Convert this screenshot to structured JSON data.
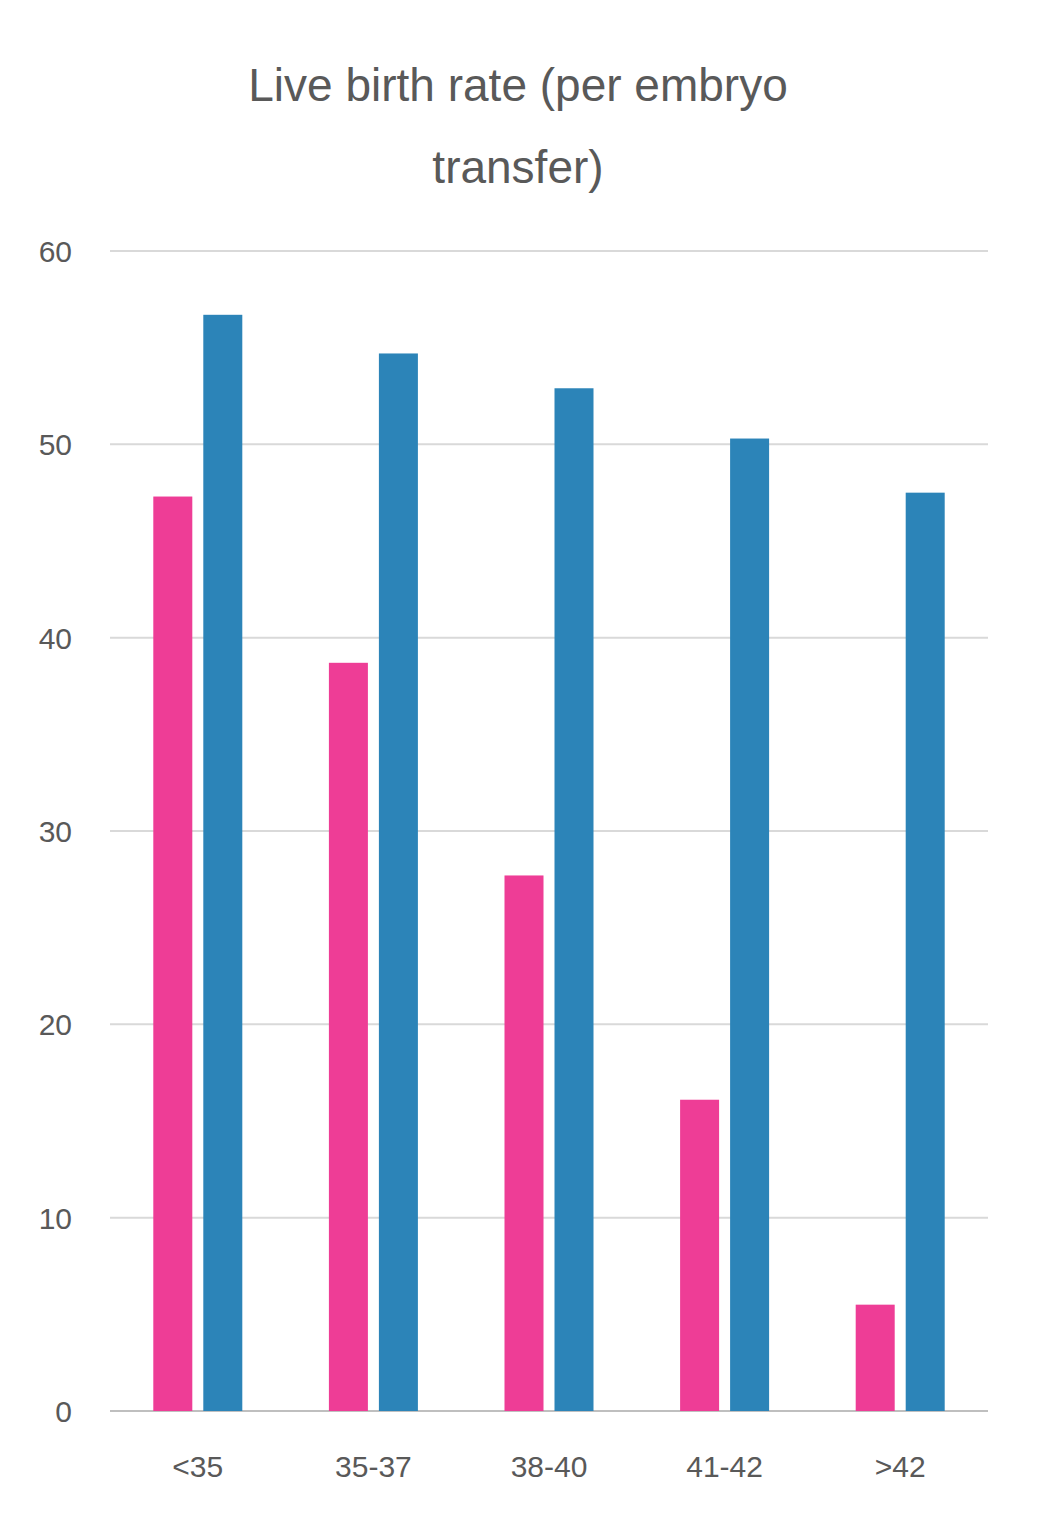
{
  "chart_data": {
    "type": "bar",
    "title": "Live birth rate (per embryo transfer)",
    "categories": [
      "<35",
      "35-37",
      "38-40",
      "41-42",
      ">42"
    ],
    "series": [
      {
        "color": "#ee3d96",
        "values": [
          47.3,
          38.7,
          27.7,
          16.1,
          5.5
        ]
      },
      {
        "color": "#2c84b8",
        "values": [
          56.7,
          54.7,
          52.9,
          50.3,
          47.5
        ]
      }
    ],
    "ylim": [
      0,
      60
    ],
    "yticks": [
      0,
      10,
      20,
      30,
      40,
      50,
      60
    ],
    "grid": true
  }
}
